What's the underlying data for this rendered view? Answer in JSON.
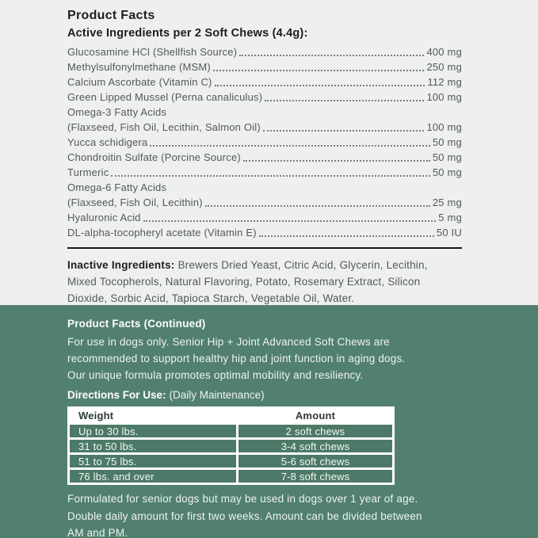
{
  "colors": {
    "page_background": "#edf0ee",
    "green_background": "#52806e",
    "table_cell_green": "#4d7a68",
    "rule_color": "#161616",
    "body_text": "#545856",
    "heading_text": "#1d1d1d",
    "white_text": "#ffffff"
  },
  "facts": {
    "title": "Product Facts",
    "active_heading": "Active Ingredients per 2 Soft Chews (4.4g):",
    "ingredients": [
      {
        "name": "Glucosamine HCl (Shellfish Source)",
        "amount": "400 mg"
      },
      {
        "name": "Methylsulfonylmethane (MSM)",
        "amount": "250 mg"
      },
      {
        "name": "Calcium Ascorbate (Vitamin C)",
        "amount": "112 mg"
      },
      {
        "name": "Green Lipped Mussel (Perna canaliculus)",
        "amount": "100 mg"
      },
      {
        "name": "Omega-3 Fatty Acids",
        "amount": ""
      },
      {
        "name": "(Flaxseed, Fish Oil, Lecithin, Salmon Oil)",
        "amount": "100 mg"
      },
      {
        "name": "Yucca schidigera",
        "amount": "50 mg"
      },
      {
        "name": "Chondroitin Sulfate (Porcine Source)",
        "amount": "50 mg"
      },
      {
        "name": "Turmeric",
        "amount": "50 mg"
      },
      {
        "name": "Omega-6 Fatty Acids",
        "amount": ""
      },
      {
        "name": "(Flaxseed, Fish Oil, Lecithin)",
        "amount": "25 mg"
      },
      {
        "name": "Hyaluronic Acid",
        "amount": "5 mg"
      },
      {
        "name": "DL-alpha-tocopheryl acetate (Vitamin E)",
        "amount": "50 IU"
      }
    ],
    "inactive_label": "Inactive Ingredients:",
    "inactive_lines": [
      "Brewers Dried Yeast, Citric Acid, Glycerin, Lecithin,",
      "Mixed Tocopherols, Natural Flavoring, Potato, Rosemary Extract, Silicon",
      "Dioxide, Sorbic Acid, Tapioca Starch, Vegetable Oil, Water."
    ]
  },
  "continued": {
    "title": "Product Facts (Continued)",
    "intro_lines": [
      "For use in dogs only. Senior Hip + Joint Advanced Soft Chews are",
      "recommended to support healthy hip and joint function in aging dogs.",
      "Our unique formula promotes optimal mobility and resiliency."
    ],
    "directions_label": "Directions For Use:",
    "directions_note": "(Daily Maintenance)",
    "table": {
      "headers": [
        "Weight",
        "Amount"
      ],
      "rows": [
        {
          "weight": "Up to 30 lbs.",
          "amount": "2 soft chews"
        },
        {
          "weight": "31 to 50 lbs.",
          "amount": "3-4 soft chews"
        },
        {
          "weight": "51 to 75 lbs.",
          "amount": "5-6 soft chews"
        },
        {
          "weight": "76 lbs. and over",
          "amount": "7-8 soft chews"
        }
      ]
    },
    "footer_lines": [
      "Formulated for senior dogs but may be used in dogs over 1 year of age.",
      "Double daily amount for first two weeks. Amount can be divided between",
      "AM and PM."
    ]
  }
}
